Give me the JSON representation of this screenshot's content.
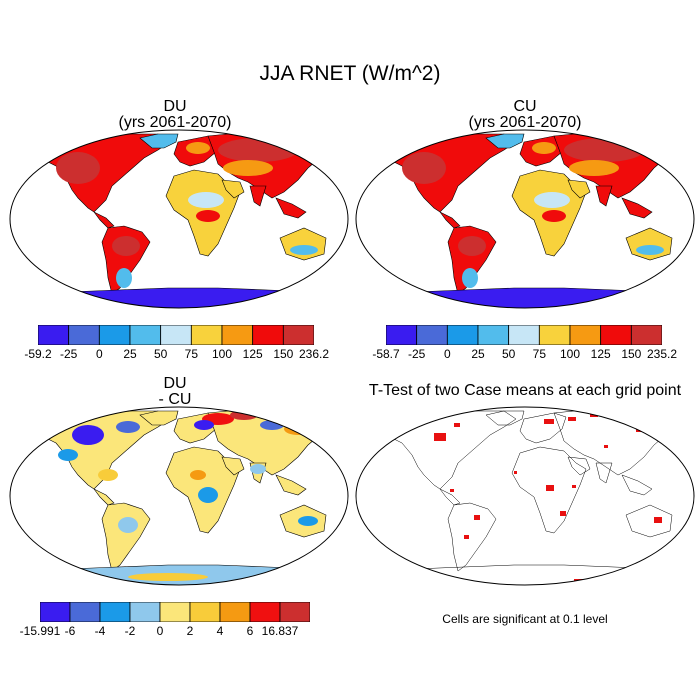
{
  "title": "JJA RNET (W/m^2)",
  "panels": [
    {
      "id": "du",
      "title": "DU",
      "subtitle": "(yrs 2061-2070)",
      "type": "field",
      "colorbar": {
        "labels": [
          "-59.2",
          "-25",
          "0",
          "25",
          "50",
          "75",
          "100",
          "125",
          "150",
          "236.2"
        ],
        "colors": [
          "#3a1cf0",
          "#4a6ad8",
          "#1b9ae8",
          "#52bcec",
          "#c7e6f6",
          "#f8d23c",
          "#f69a12",
          "#f00b0b",
          "#cc2f2f"
        ]
      }
    },
    {
      "id": "cu",
      "title": "CU",
      "subtitle": "(yrs 2061-2070)",
      "type": "field",
      "colorbar": {
        "labels": [
          "-58.7",
          "-25",
          "0",
          "25",
          "50",
          "75",
          "100",
          "125",
          "150",
          "235.2"
        ],
        "colors": [
          "#3a1cf0",
          "#4a6ad8",
          "#1b9ae8",
          "#52bcec",
          "#c7e6f6",
          "#f8d23c",
          "#f69a12",
          "#f00b0b",
          "#cc2f2f"
        ]
      }
    },
    {
      "id": "diff",
      "title": "DU",
      "subtitle": "- CU",
      "type": "difference",
      "colorbar": {
        "labels": [
          "-15.991",
          "-6",
          "-4",
          "-2",
          "0",
          "2",
          "4",
          "6",
          "16.837"
        ],
        "colors": [
          "#3a1cf0",
          "#4a6ad8",
          "#1b9ae8",
          "#8fc8ec",
          "#fbe67a",
          "#f8cc3a",
          "#f59a12",
          "#f01010",
          "#cc2f2f"
        ]
      }
    },
    {
      "id": "ttest",
      "title": "T-Test of two Case means at each grid point",
      "subtitle": "",
      "type": "significance",
      "note": "Cells are significant at 0.1 level",
      "sig_color": "#e81010"
    }
  ]
}
